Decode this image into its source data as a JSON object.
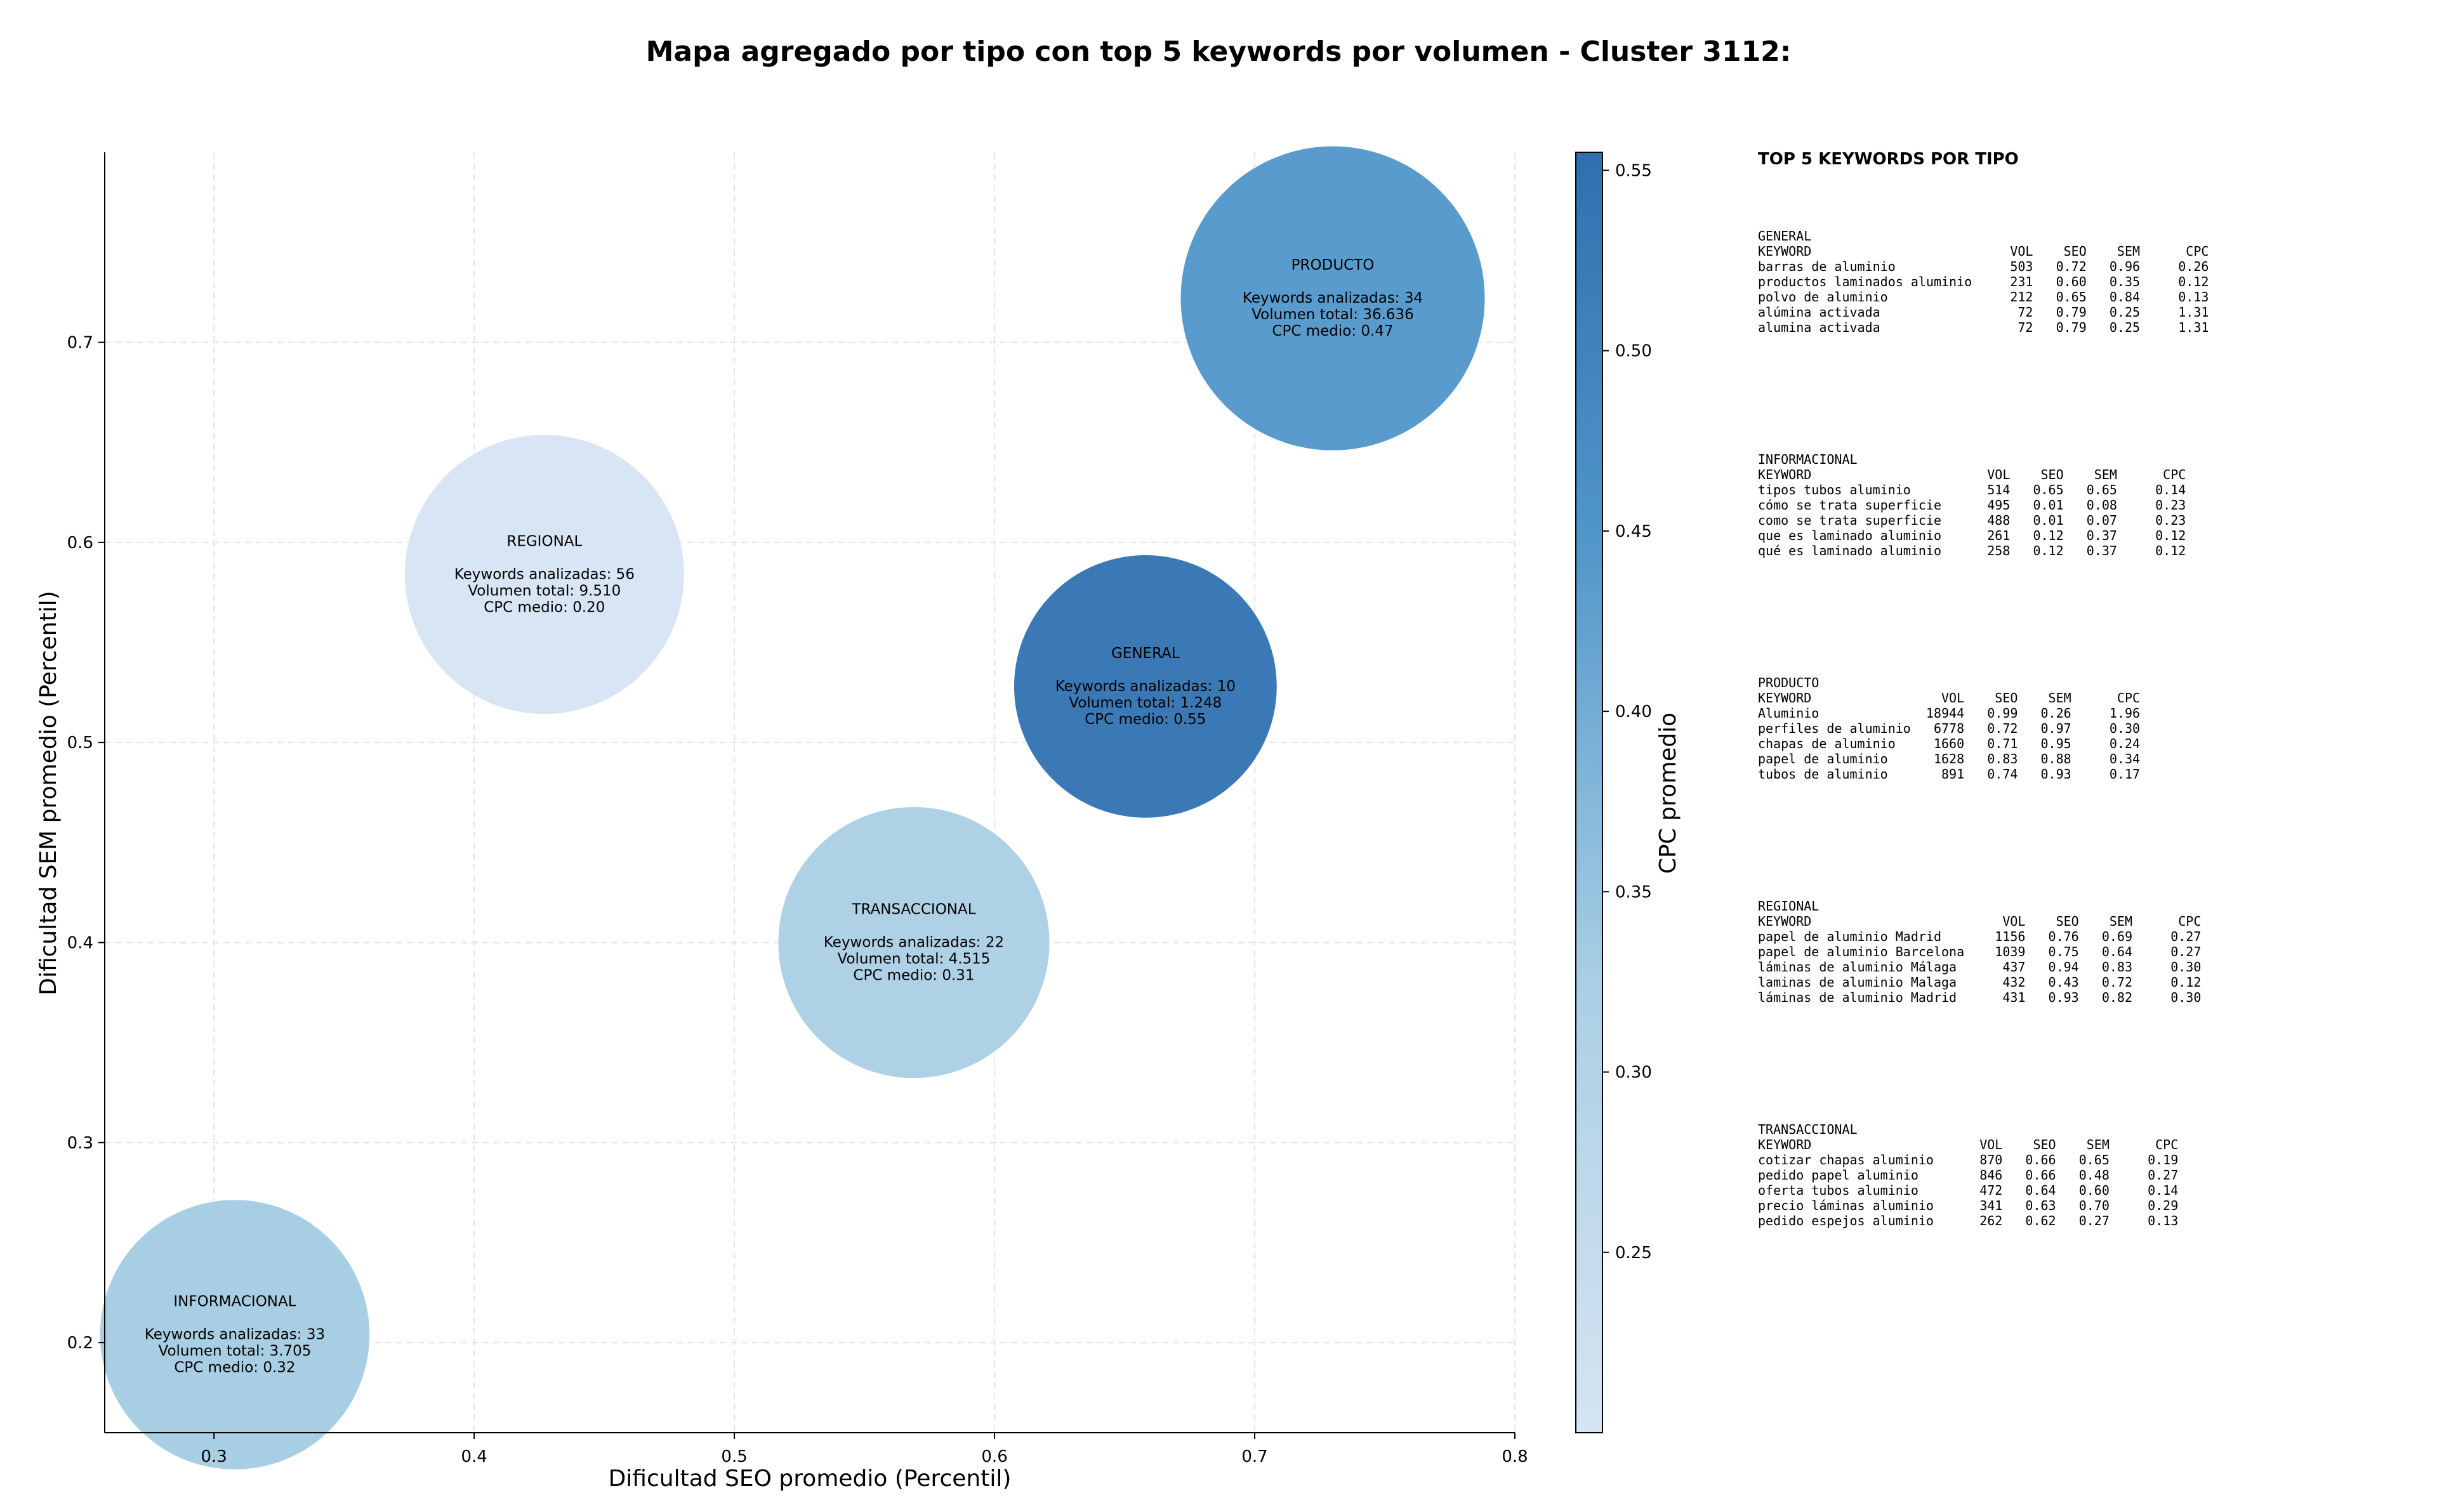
{
  "title": "Mapa agregado por tipo con top 5 keywords por volumen - Cluster 3112:",
  "chart_data": {
    "type": "scatter",
    "xlabel": "Dificultad SEO promedio (Percentil)",
    "ylabel": "Dificultad SEM promedio (Percentil)",
    "xlim": [
      0.258,
      0.8
    ],
    "ylim": [
      0.155,
      0.795
    ],
    "x_ticks": [
      "0.3",
      "0.4",
      "0.5",
      "0.6",
      "0.7",
      "0.8"
    ],
    "y_ticks": [
      "0.2",
      "0.3",
      "0.4",
      "0.5",
      "0.6",
      "0.7"
    ],
    "grid": true,
    "bubble_size_encodes": "Volumen total",
    "color_encodes": "CPC promedio",
    "colorbar": {
      "label": "CPC promedio",
      "range": [
        0.2,
        0.555
      ],
      "ticks": [
        "0.25",
        "0.30",
        "0.35",
        "0.40",
        "0.45",
        "0.50",
        "0.55"
      ],
      "color_low": "#d6e4f3",
      "color_high": "#2f6faf"
    },
    "points": [
      {
        "name": "PRODUCTO",
        "x": 0.73,
        "y": 0.722,
        "keywords": "Keywords analizadas: 34",
        "volume": "Volumen total: 36.636",
        "cpc_label": "CPC medio: 0.47",
        "cpc": 0.47,
        "volume_value": 36636,
        "color": "#5096c9"
      },
      {
        "name": "REGIONAL",
        "x": 0.427,
        "y": 0.584,
        "keywords": "Keywords analizadas: 56",
        "volume": "Volumen total: 9.510",
        "cpc_label": "CPC medio: 0.20",
        "cpc": 0.2,
        "volume_value": 9510,
        "color": "#d6e4f3"
      },
      {
        "name": "GENERAL",
        "x": 0.658,
        "y": 0.528,
        "keywords": "Keywords analizadas: 10",
        "volume": "Volumen total: 1.248",
        "cpc_label": "CPC medio: 0.55",
        "cpc": 0.55,
        "volume_value": 1248,
        "color": "#2f72b1"
      },
      {
        "name": "TRANSACCIONAL",
        "x": 0.569,
        "y": 0.4,
        "keywords": "Keywords analizadas: 22",
        "volume": "Volumen total: 4.515",
        "cpc_label": "CPC medio: 0.31",
        "cpc": 0.31,
        "volume_value": 4515,
        "color": "#aacfe5"
      },
      {
        "name": "INFORMACIONAL",
        "x": 0.308,
        "y": 0.204,
        "keywords": "Keywords analizadas: 33",
        "volume": "Volumen total: 3.705",
        "cpc_label": "CPC medio: 0.32",
        "cpc": 0.32,
        "volume_value": 3705,
        "color": "#a3cbe2"
      }
    ]
  },
  "panel": {
    "title": "TOP 5 KEYWORDS POR TIPO",
    "blocks": [
      {
        "name": "GENERAL",
        "lines": [
          "GENERAL",
          "KEYWORD                          VOL    SEO    SEM      CPC",
          "barras de aluminio               503   0.72   0.96     0.26",
          "productos laminados aluminio     231   0.60   0.35     0.12",
          "polvo de aluminio                212   0.65   0.84     0.13",
          "alúmina activada                  72   0.79   0.25     1.31",
          "alumina activada                  72   0.79   0.25     1.31"
        ]
      },
      {
        "name": "INFORMACIONAL",
        "lines": [
          "INFORMACIONAL",
          "KEYWORD                       VOL    SEO    SEM      CPC",
          "tipos tubos aluminio          514   0.65   0.65     0.14",
          "cómo se trata superficie      495   0.01   0.08     0.23",
          "como se trata superficie      488   0.01   0.07     0.23",
          "que es laminado aluminio      261   0.12   0.37     0.12",
          "qué es laminado aluminio      258   0.12   0.37     0.12"
        ]
      },
      {
        "name": "PRODUCTO",
        "lines": [
          "PRODUCTO",
          "KEYWORD                 VOL    SEO    SEM      CPC",
          "Aluminio              18944   0.99   0.26     1.96",
          "perfiles de aluminio   6778   0.72   0.97     0.30",
          "chapas de aluminio     1660   0.71   0.95     0.24",
          "papel de aluminio      1628   0.83   0.88     0.34",
          "tubos de aluminio       891   0.74   0.93     0.17"
        ]
      },
      {
        "name": "REGIONAL",
        "lines": [
          "REGIONAL",
          "KEYWORD                         VOL    SEO    SEM      CPC",
          "papel de aluminio Madrid       1156   0.76   0.69     0.27",
          "papel de aluminio Barcelona    1039   0.75   0.64     0.27",
          "láminas de aluminio Málaga      437   0.94   0.83     0.30",
          "laminas de aluminio Malaga      432   0.43   0.72     0.12",
          "láminas de aluminio Madrid      431   0.93   0.82     0.30"
        ]
      },
      {
        "name": "TRANSACCIONAL",
        "lines": [
          "TRANSACCIONAL",
          "KEYWORD                      VOL    SEO    SEM      CPC",
          "cotizar chapas aluminio      870   0.66   0.65     0.19",
          "pedido papel aluminio        846   0.66   0.48     0.27",
          "oferta tubos aluminio        472   0.64   0.60     0.14",
          "precio láminas aluminio      341   0.63   0.70     0.29",
          "pedido espejos aluminio      262   0.62   0.27     0.13"
        ]
      }
    ]
  }
}
